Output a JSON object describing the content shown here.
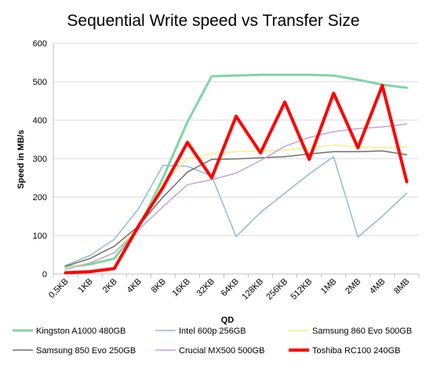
{
  "chart_data": {
    "type": "line",
    "title": "Sequential Write speed vs Transfer Size",
    "xlabel": "QD",
    "ylabel": "Speed in MB/s",
    "ylim": [
      0,
      600
    ],
    "yticks": [
      0,
      100,
      200,
      300,
      400,
      500,
      600
    ],
    "grid": true,
    "legend_position": "bottom",
    "categories": [
      "0,5KB",
      "1KB",
      "2KB",
      "4KB",
      "8KB",
      "16KB",
      "32KB",
      "64KB",
      "128KB",
      "256KB",
      "512KB",
      "1MB",
      "2MB",
      "4MB",
      "8MB"
    ],
    "series": [
      {
        "name": "Kingston A1000 480GB",
        "color": "#7fd6a4",
        "width": 3,
        "values": [
          18,
          25,
          40,
          120,
          250,
          395,
          514,
          516,
          518,
          518,
          518,
          516,
          505,
          492,
          484
        ]
      },
      {
        "name": "Intel 600p 256GB",
        "color": "#8fbbd9",
        "width": 1.5,
        "values": [
          22,
          48,
          90,
          170,
          282,
          280,
          255,
          97,
          160,
          210,
          260,
          305,
          96,
          150,
          210
        ]
      },
      {
        "name": "Samsung 860 Evo 500GB",
        "color": "#f2f28a",
        "width": 1.5,
        "values": [
          15,
          30,
          55,
          125,
          235,
          300,
          312,
          318,
          320,
          322,
          328,
          335,
          330,
          328,
          330
        ]
      },
      {
        "name": "Samsung 850 Evo 250GB",
        "color": "#707070",
        "width": 1.5,
        "values": [
          20,
          40,
          72,
          125,
          200,
          265,
          298,
          299,
          302,
          305,
          312,
          318,
          318,
          320,
          310
        ]
      },
      {
        "name": "Crucial MX500 500GB",
        "color": "#c4a3d9",
        "width": 1.5,
        "values": [
          12,
          28,
          55,
          115,
          175,
          232,
          245,
          262,
          295,
          332,
          355,
          370,
          378,
          382,
          390
        ]
      },
      {
        "name": "Toshiba RC100 240GB",
        "color": "#ff0000",
        "width": 4,
        "values": [
          3,
          6,
          14,
          125,
          225,
          342,
          250,
          410,
          315,
          447,
          298,
          470,
          328,
          490,
          240
        ]
      }
    ]
  }
}
